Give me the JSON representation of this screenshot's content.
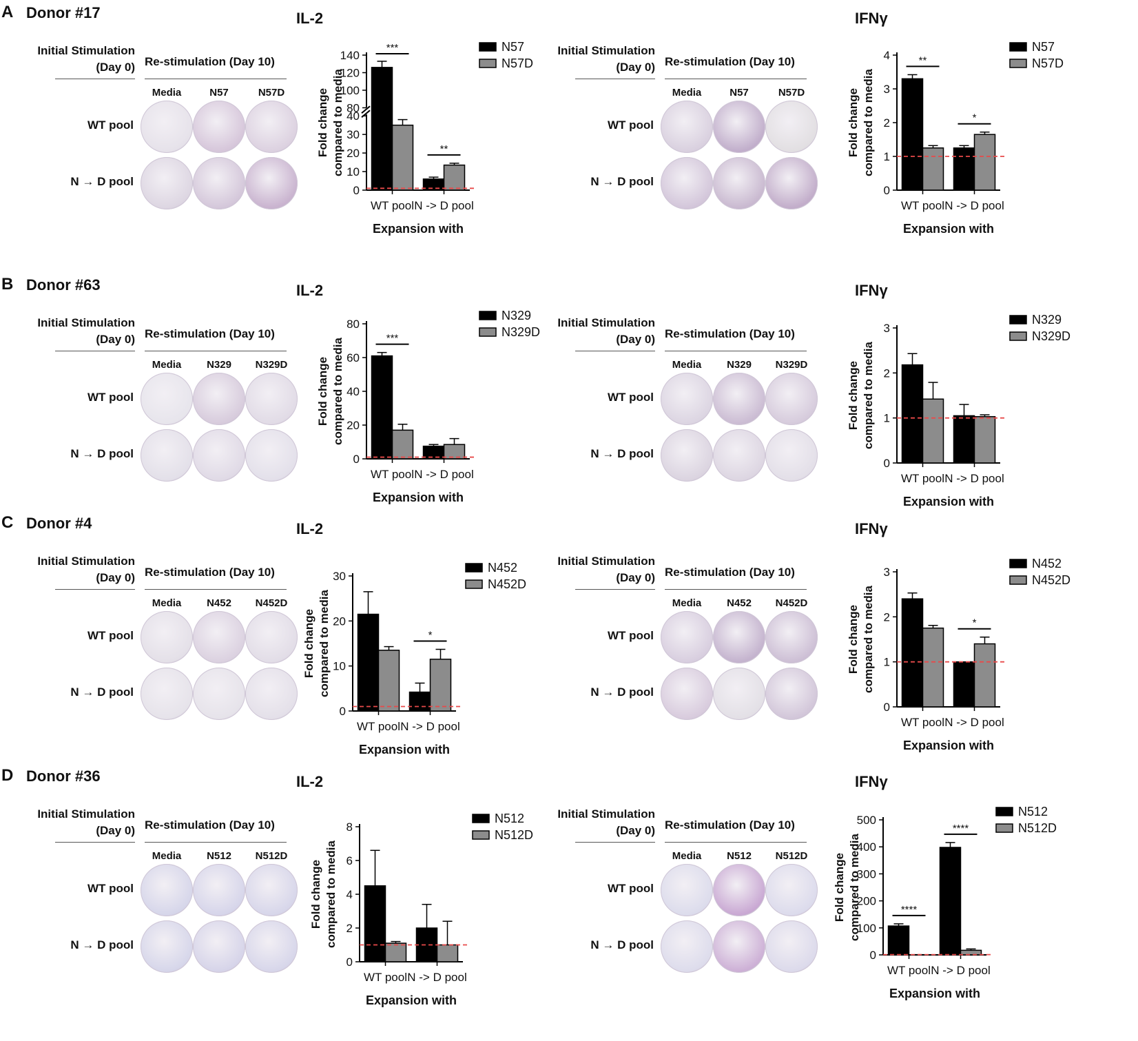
{
  "figure": {
    "panels": [
      {
        "letter": "A",
        "donor": "Donor #17",
        "assays": [
          {
            "title": "IL-2",
            "init_line1": "Initial Stimulation",
            "init_line2": "(Day 0)",
            "restim": "Re-stimulation (Day 10)",
            "wells": [
              "Media",
              "N57",
              "N57D"
            ],
            "pools": [
              "WT pool",
              "N → D pool"
            ],
            "well_colors": [
              [
                "#e6e2ea",
                "#d6c6da",
                "#dcd1e0"
              ],
              [
                "#ddd6e2",
                "#d4c7da",
                "#c9b3cf"
              ]
            ]
          },
          {
            "title": "IFNγ",
            "init_line1": "Initial Stimulation",
            "init_line2": "(Day 0)",
            "restim": "Re-stimulation (Day 10)",
            "wells": [
              "Media",
              "N57",
              "N57D"
            ],
            "pools": [
              "WT pool",
              "N → D pool"
            ],
            "well_colors": [
              [
                "#d9d0df",
                "#c1aecb",
                "#e2dfe2"
              ],
              [
                "#d3c6da",
                "#c9b9d0",
                "#c2adca"
              ]
            ]
          }
        ]
      },
      {
        "letter": "B",
        "donor": "Donor #63",
        "assays": [
          {
            "title": "IL-2",
            "init_line1": "Initial Stimulation",
            "init_line2": "(Day 0)",
            "restim": "Re-stimulation (Day 10)",
            "wells": [
              "Media",
              "N329",
              "N329D"
            ],
            "pools": [
              "WT pool",
              "N → D pool"
            ],
            "well_colors": [
              [
                "#e7e5ec",
                "#d7cbdc",
                "#e1dbe6"
              ],
              [
                "#e3e0e9",
                "#e0dae6",
                "#e3e0ea"
              ]
            ]
          },
          {
            "title": "IFNγ",
            "init_line1": "Initial Stimulation",
            "init_line2": "(Day 0)",
            "restim": "Re-stimulation (Day 10)",
            "wells": [
              "Media",
              "N329",
              "N329D"
            ],
            "pools": [
              "WT pool",
              "N → D pool"
            ],
            "well_colors": [
              [
                "#dcd5e2",
                "#cbbcd3",
                "#d6cbdc"
              ],
              [
                "#dbd4e0",
                "#ddd6e2",
                "#e3dfe8"
              ]
            ]
          }
        ]
      },
      {
        "letter": "C",
        "donor": "Donor #4",
        "assays": [
          {
            "title": "IL-2",
            "init_line1": "Initial Stimulation",
            "init_line2": "(Day 0)",
            "restim": "Re-stimulation (Day 10)",
            "wells": [
              "Media",
              "N452",
              "N452D"
            ],
            "pools": [
              "WT pool",
              "N → D pool"
            ],
            "well_colors": [
              [
                "#e4e0e8",
                "#dbd1e0",
                "#e2dde7"
              ],
              [
                "#e6e3ea",
                "#e6e3ea",
                "#e4e0e9"
              ]
            ]
          },
          {
            "title": "IFNγ",
            "init_line1": "Initial Stimulation",
            "init_line2": "(Day 0)",
            "restim": "Re-stimulation (Day 10)",
            "wells": [
              "Media",
              "N452",
              "N452D"
            ],
            "pools": [
              "WT pool",
              "N → D pool"
            ],
            "well_colors": [
              [
                "#d8cedf",
                "#c4b3ce",
                "#cdbfd5"
              ],
              [
                "#d8cbdd",
                "#e3e0e6",
                "#d2c6d9"
              ]
            ]
          }
        ]
      },
      {
        "letter": "D",
        "donor": "Donor #36",
        "assays": [
          {
            "title": "IL-2",
            "init_line1": "Initial Stimulation",
            "init_line2": "(Day 0)",
            "restim": "Re-stimulation (Day 10)",
            "wells": [
              "Media",
              "N512",
              "N512D"
            ],
            "pools": [
              "WT pool",
              "N → D pool"
            ],
            "well_colors": [
              [
                "#d6d6ea",
                "#d6d5ea",
                "#d7d6ea"
              ],
              [
                "#d6d6ea",
                "#d6d4e9",
                "#d7d6ea"
              ]
            ]
          },
          {
            "title": "IFNγ",
            "init_line1": "Initial Stimulation",
            "init_line2": "(Day 0)",
            "restim": "Re-stimulation (Day 10)",
            "wells": [
              "Media",
              "N512",
              "N512D"
            ],
            "pools": [
              "WT pool",
              "N → D pool"
            ],
            "well_colors": [
              [
                "#dcdcec",
                "#c9a8d3",
                "#dcdbec"
              ],
              [
                "#dddcec",
                "#cdb0d6",
                "#dcdaeb"
              ]
            ]
          }
        ]
      }
    ]
  },
  "colors": {
    "black_bar": "#000000",
    "gray_bar": "#8c8c8c",
    "baseline": "#e84a4a"
  },
  "chart_data": [
    {
      "id": "A-IL2",
      "type": "bar",
      "ylabel": "Fold change compared to media",
      "xlabel": "Expansion with",
      "categories": [
        "WT pool",
        "N -> D pool"
      ],
      "broken_axis": true,
      "ylim": [
        0,
        140
      ],
      "yticks_lower": [
        0,
        10,
        20,
        30,
        40
      ],
      "yticks_upper": [
        80,
        100,
        120,
        140
      ],
      "break": [
        40,
        80
      ],
      "series": [
        {
          "name": "N57",
          "values": [
            126,
            6
          ],
          "errors": [
            7,
            1
          ]
        },
        {
          "name": "N57D",
          "values": [
            35,
            13.5
          ],
          "errors": [
            3,
            1
          ]
        }
      ],
      "significance": [
        {
          "category": 0,
          "label": "***"
        },
        {
          "category": 1,
          "label": "**"
        }
      ],
      "baseline": 1
    },
    {
      "id": "A-IFNg",
      "type": "bar",
      "ylabel": "Fold change compared to media",
      "xlabel": "Expansion with",
      "categories": [
        "WT pool",
        "N -> D pool"
      ],
      "ylim": [
        0,
        4
      ],
      "yticks": [
        0,
        1,
        2,
        3,
        4
      ],
      "series": [
        {
          "name": "N57",
          "values": [
            3.3,
            1.25
          ],
          "errors": [
            0.12,
            0.07
          ]
        },
        {
          "name": "N57D",
          "values": [
            1.25,
            1.65
          ],
          "errors": [
            0.07,
            0.07
          ]
        }
      ],
      "significance": [
        {
          "category": 0,
          "label": "**"
        },
        {
          "category": 1,
          "label": "*"
        }
      ],
      "baseline": 1
    },
    {
      "id": "B-IL2",
      "type": "bar",
      "ylabel": "Fold change compared to media",
      "xlabel": "Expansion with",
      "categories": [
        "WT pool",
        "N -> D pool"
      ],
      "ylim": [
        0,
        80
      ],
      "yticks": [
        0,
        20,
        40,
        60,
        80
      ],
      "series": [
        {
          "name": "N329",
          "values": [
            61,
            7.5
          ],
          "errors": [
            2,
            1
          ]
        },
        {
          "name": "N329D",
          "values": [
            17,
            8.5
          ],
          "errors": [
            3.5,
            3.5
          ]
        }
      ],
      "significance": [
        {
          "category": 0,
          "label": "***"
        }
      ],
      "baseline": 1
    },
    {
      "id": "B-IFNg",
      "type": "bar",
      "ylabel": "Fold change compared to media",
      "xlabel": "Expansion with",
      "categories": [
        "WT pool",
        "N -> D pool"
      ],
      "ylim": [
        0,
        3
      ],
      "yticks": [
        0,
        1,
        2,
        3
      ],
      "series": [
        {
          "name": "N329",
          "values": [
            2.18,
            1.05
          ],
          "errors": [
            0.25,
            0.25
          ]
        },
        {
          "name": "N329D",
          "values": [
            1.42,
            1.03
          ],
          "errors": [
            0.37,
            0.04
          ]
        }
      ],
      "significance": [],
      "baseline": 1
    },
    {
      "id": "C-IL2",
      "type": "bar",
      "ylabel": "Fold change compared to media",
      "xlabel": "Expansion with",
      "categories": [
        "WT pool",
        "N -> D pool"
      ],
      "ylim": [
        0,
        30
      ],
      "yticks": [
        0,
        10,
        20,
        30
      ],
      "series": [
        {
          "name": "N452",
          "values": [
            21.5,
            4.2
          ],
          "errors": [
            5,
            2
          ]
        },
        {
          "name": "N452D",
          "values": [
            13.5,
            11.5
          ],
          "errors": [
            0.8,
            2.2
          ]
        }
      ],
      "significance": [
        {
          "category": 1,
          "label": "*"
        }
      ],
      "baseline": 1
    },
    {
      "id": "C-IFNg",
      "type": "bar",
      "ylabel": "Fold change compared to media",
      "xlabel": "Expansion with",
      "categories": [
        "WT pool",
        "N -> D pool"
      ],
      "ylim": [
        0,
        3
      ],
      "yticks": [
        0,
        1,
        2,
        3
      ],
      "series": [
        {
          "name": "N452",
          "values": [
            2.4,
            1.0
          ],
          "errors": [
            0.13,
            0
          ]
        },
        {
          "name": "N452D",
          "values": [
            1.75,
            1.4
          ],
          "errors": [
            0.06,
            0.15
          ]
        }
      ],
      "significance": [
        {
          "category": 1,
          "label": "*"
        }
      ],
      "baseline": 1
    },
    {
      "id": "D-IL2",
      "type": "bar",
      "ylabel": "Fold change compared to media",
      "xlabel": "Expansion with",
      "categories": [
        "WT pool",
        "N -> D pool"
      ],
      "ylim": [
        0,
        8
      ],
      "yticks": [
        0,
        2,
        4,
        6,
        8
      ],
      "series": [
        {
          "name": "N512",
          "values": [
            4.5,
            2.0
          ],
          "errors": [
            2.1,
            1.4
          ]
        },
        {
          "name": "N512D",
          "values": [
            1.1,
            1.0
          ],
          "errors": [
            0.1,
            1.4
          ]
        }
      ],
      "significance": [],
      "baseline": 1
    },
    {
      "id": "D-IFNg",
      "type": "bar",
      "ylabel": "Fold change compared to media",
      "xlabel": "Expansion with",
      "categories": [
        "WT pool",
        "N -> D pool"
      ],
      "ylim": [
        0,
        500
      ],
      "yticks": [
        0,
        100,
        200,
        300,
        400,
        500
      ],
      "series": [
        {
          "name": "N512",
          "values": [
            107,
            398
          ],
          "errors": [
            8,
            18
          ]
        },
        {
          "name": "N512D",
          "values": [
            0.6,
            17
          ],
          "errors": [
            0.3,
            5
          ]
        }
      ],
      "significance": [
        {
          "category": 0,
          "label": "****"
        },
        {
          "category": 1,
          "label": "****"
        }
      ],
      "baseline": 1
    }
  ]
}
